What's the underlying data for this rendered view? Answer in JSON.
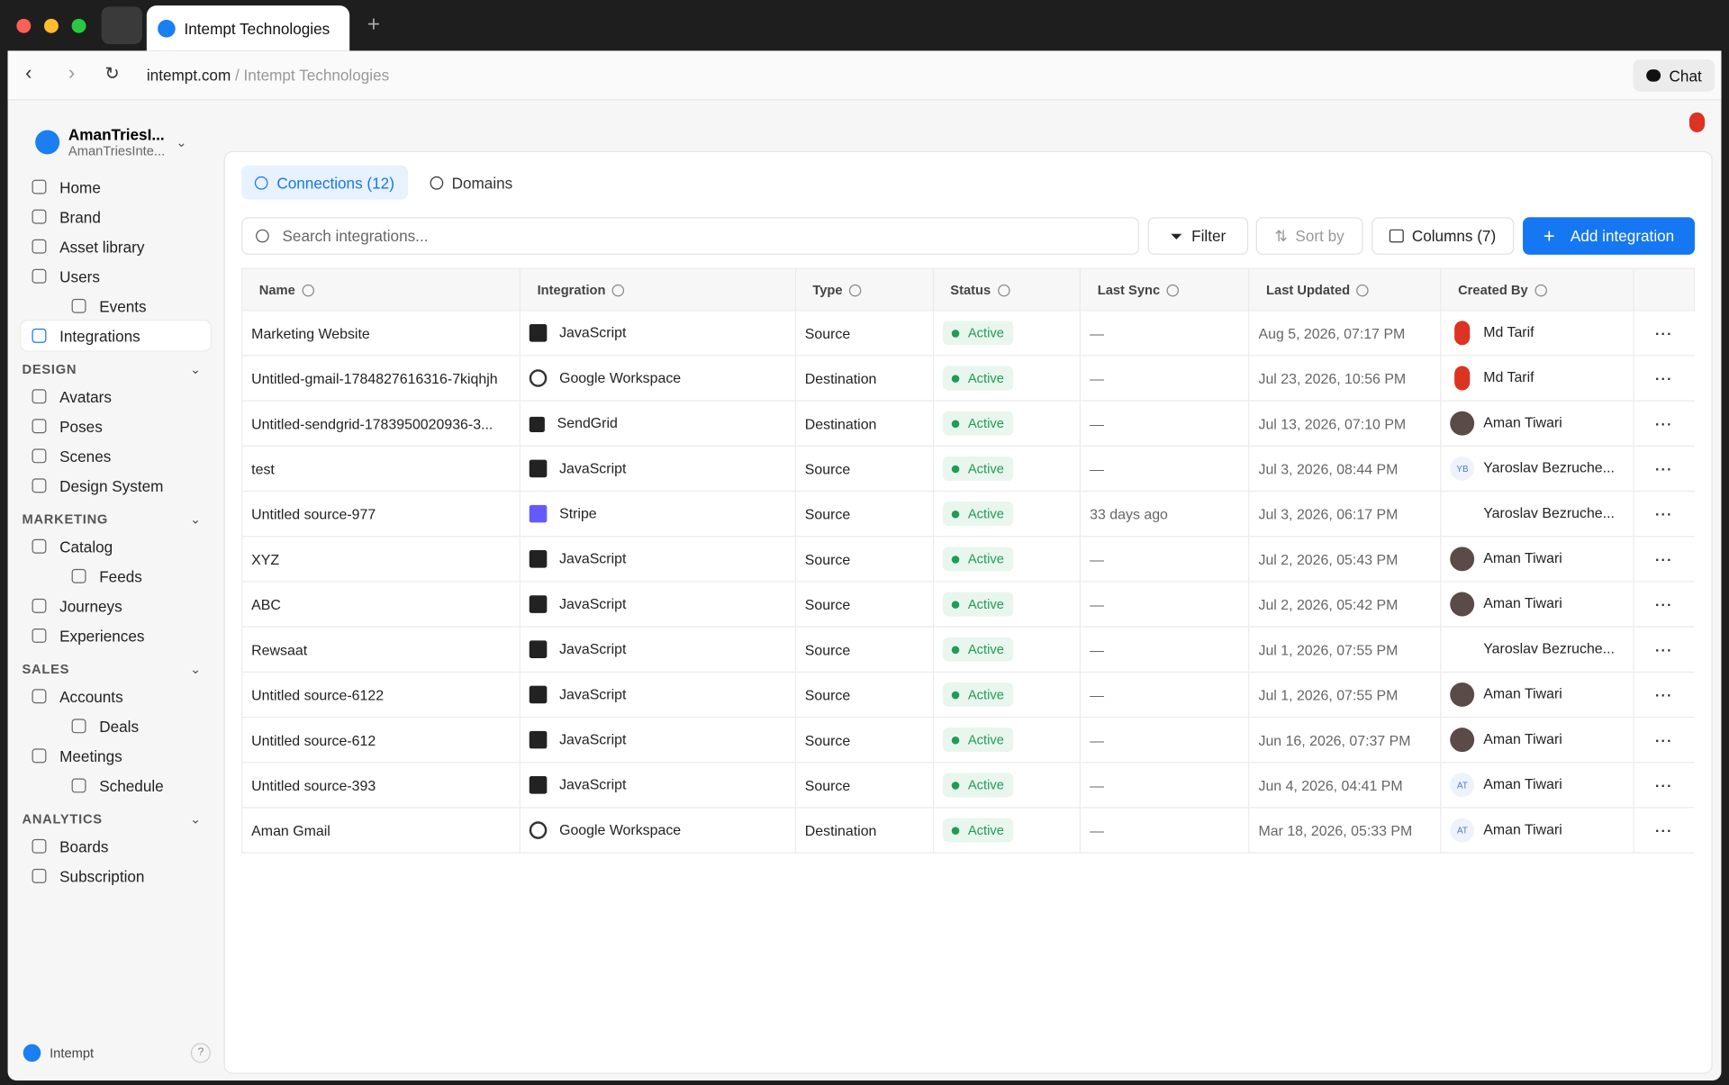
{
  "browser": {
    "tab_title": "Intempt Technologies",
    "url_domain": "intempt.com",
    "url_path": "/ Intempt Technologies",
    "chat": "Chat"
  },
  "sidebar": {
    "account_name": "AmanTriesI...",
    "account_sub": "AmanTriesInte...",
    "nav": [
      {
        "label": "Home"
      },
      {
        "label": "Brand"
      },
      {
        "label": "Asset library"
      },
      {
        "label": "Users"
      },
      {
        "label": "Events",
        "child": true
      },
      {
        "label": "Integrations",
        "active": true
      }
    ],
    "sections": [
      {
        "title": "DESIGN",
        "items": [
          {
            "label": "Avatars"
          },
          {
            "label": "Poses"
          },
          {
            "label": "Scenes"
          },
          {
            "label": "Design System"
          }
        ]
      },
      {
        "title": "MARKETING",
        "items": [
          {
            "label": "Catalog"
          },
          {
            "label": "Feeds",
            "child": true
          },
          {
            "label": "Journeys"
          },
          {
            "label": "Experiences"
          }
        ]
      },
      {
        "title": "SALES",
        "items": [
          {
            "label": "Accounts"
          },
          {
            "label": "Deals",
            "child": true
          },
          {
            "label": "Meetings"
          },
          {
            "label": "Schedule",
            "child": true
          }
        ]
      },
      {
        "title": "ANALYTICS",
        "items": [
          {
            "label": "Boards"
          },
          {
            "label": "Subscription"
          }
        ]
      }
    ],
    "footer": "Intempt",
    "help": "?"
  },
  "tabs": [
    {
      "label": "Connections (12)",
      "active": true
    },
    {
      "label": "Domains"
    }
  ],
  "toolbar": {
    "search_placeholder": "Search integrations...",
    "filter": "Filter",
    "sort": "Sort by",
    "columns": "Columns (7)",
    "add": "Add integration"
  },
  "table": {
    "columns": [
      "Name",
      "Integration",
      "Type",
      "Status",
      "Last Sync",
      "Last Updated",
      "Created By"
    ],
    "rows": [
      {
        "name": "Marketing Website",
        "integration": "JavaScript",
        "type": "Source",
        "status": "Active",
        "last_sync": "—",
        "last_updated": "Aug 5, 2026, 07:17 PM",
        "created_by": "Md Tarif"
      },
      {
        "name": "Untitled-gmail-1784827616316-7kiqhjh",
        "integration": "Google Workspace",
        "type": "Destination",
        "status": "Active",
        "last_sync": "—",
        "last_updated": "Jul 23, 2026, 10:56 PM",
        "created_by": "Md Tarif"
      },
      {
        "name": "Untitled-sendgrid-1783950020936-3...",
        "integration": "SendGrid",
        "type": "Destination",
        "status": "Active",
        "last_sync": "—",
        "last_updated": "Jul 13, 2026, 07:10 PM",
        "created_by": "Aman Tiwari"
      },
      {
        "name": "test",
        "integration": "JavaScript",
        "type": "Source",
        "status": "Active",
        "last_sync": "—",
        "last_updated": "Jul 3, 2026, 08:44 PM",
        "created_by": "Yaroslav Bezruche...",
        "avatar_initials": "YB"
      },
      {
        "name": "Untitled source-977",
        "integration": "Stripe",
        "type": "Source",
        "status": "Active",
        "last_sync": "33 days ago",
        "last_updated": "Jul 3, 2026, 06:17 PM",
        "created_by": "Yaroslav Bezruche..."
      },
      {
        "name": "XYZ",
        "integration": "JavaScript",
        "type": "Source",
        "status": "Active",
        "last_sync": "—",
        "last_updated": "Jul 2, 2026, 05:43 PM",
        "created_by": "Aman Tiwari"
      },
      {
        "name": "ABC",
        "integration": "JavaScript",
        "type": "Source",
        "status": "Active",
        "last_sync": "—",
        "last_updated": "Jul 2, 2026, 05:42 PM",
        "created_by": "Aman Tiwari"
      },
      {
        "name": "Rewsaat",
        "integration": "JavaScript",
        "type": "Source",
        "status": "Active",
        "last_sync": "—",
        "last_updated": "Jul 1, 2026, 07:55 PM",
        "created_by": "Yaroslav Bezruche..."
      },
      {
        "name": "Untitled source-6122",
        "integration": "JavaScript",
        "type": "Source",
        "status": "Active",
        "last_sync": "—",
        "last_updated": "Jul 1, 2026, 07:55 PM",
        "created_by": "Aman Tiwari"
      },
      {
        "name": "Untitled source-612",
        "integration": "JavaScript",
        "type": "Source",
        "status": "Active",
        "last_sync": "—",
        "last_updated": "Jun 16, 2026, 07:37 PM",
        "created_by": "Aman Tiwari"
      },
      {
        "name": "Untitled source-393",
        "integration": "JavaScript",
        "type": "Source",
        "status": "Active",
        "last_sync": "—",
        "last_updated": "Jun 4, 2026, 04:41 PM",
        "created_by": "Aman Tiwari",
        "avatar_initials": "AT"
      },
      {
        "name": "Aman Gmail",
        "integration": "Google Workspace",
        "type": "Destination",
        "status": "Active",
        "last_sync": "—",
        "last_updated": "Mar 18, 2026, 05:33 PM",
        "created_by": "Aman Tiwari",
        "avatar_initials": "AT"
      }
    ]
  }
}
